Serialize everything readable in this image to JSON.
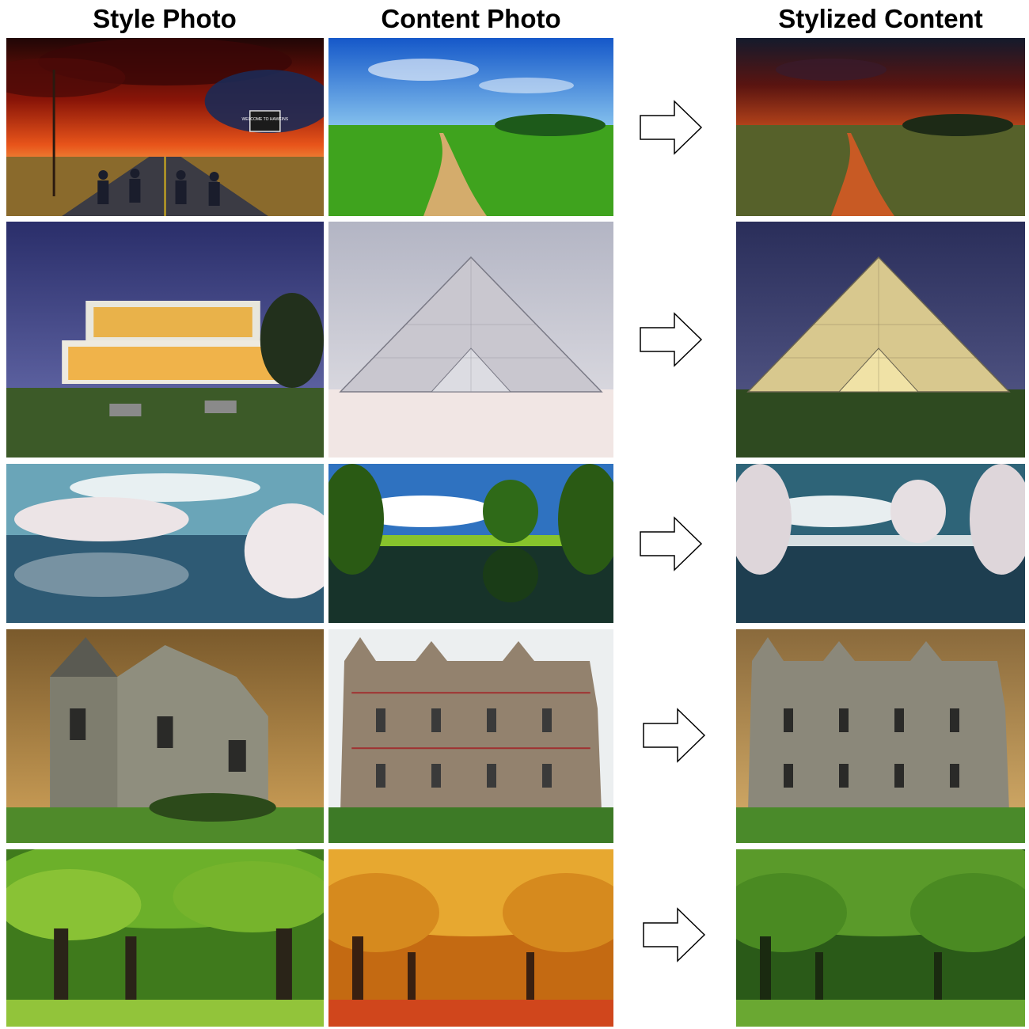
{
  "headers": {
    "style": "Style Photo",
    "content": "Content Photo",
    "stylized": "Stylized Content"
  },
  "rows": [
    {
      "style_desc": "stormy red sky, road, kids on bikes, WELCOME TO HAWKINS sign",
      "sign_text": "WELCOME TO HAWKINS",
      "content_desc": "green meadow with dirt path under blue sky",
      "stylized_desc": "meadow path with dark red stormy sky"
    },
    {
      "style_desc": "modern glass house at dusk",
      "content_desc": "glass pyramid under cloudy sky",
      "stylized_desc": "glass pyramid at dusk"
    },
    {
      "style_desc": "white infrared trees reflected in river",
      "content_desc": "green trees reflected in pond",
      "stylized_desc": "pond with white infrared trees"
    },
    {
      "style_desc": "stone manor under golden sky",
      "content_desc": "red-trimmed castle under white sky",
      "stylized_desc": "castle under golden sky"
    },
    {
      "style_desc": "green trees in park",
      "content_desc": "orange autumn tree avenue",
      "stylized_desc": "green tree avenue"
    }
  ],
  "colors": {
    "arrow_stroke": "#000000",
    "arrow_fill": "#ffffff"
  }
}
